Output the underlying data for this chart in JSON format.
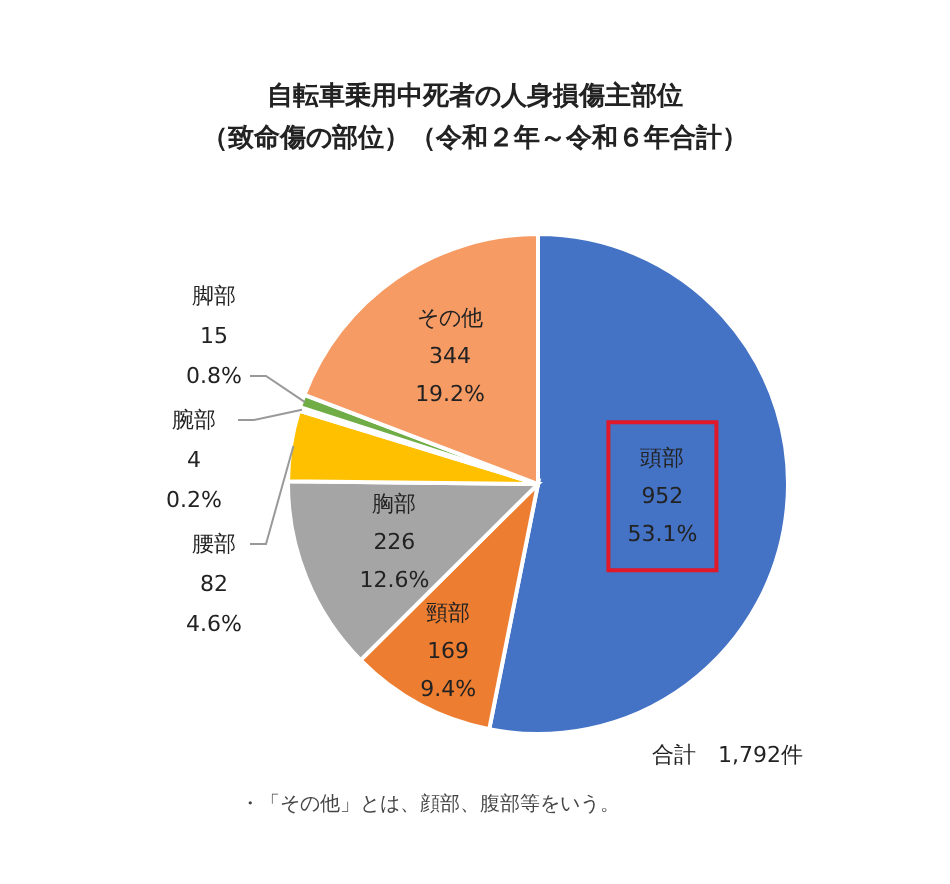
{
  "chart_data": {
    "type": "pie",
    "title": "自転車乗用中死者の人身損傷主部位",
    "subtitle": "（致命傷の部位）（令和２年～令和６年合計）",
    "categories": [
      "頭部",
      "頸部",
      "胸部",
      "腰部",
      "腕部",
      "脚部",
      "その他"
    ],
    "values": [
      952,
      169,
      226,
      82,
      4,
      15,
      344
    ],
    "colors": [
      "#4472c4",
      "#ed7d31",
      "#a5a5a5",
      "#ffc000",
      "#9dc3e6",
      "#70ad47",
      "#f79b65"
    ],
    "value_labels": [
      "952\n53.1%",
      "169\n9.4%",
      "226\n12.6%",
      "82\n4.6%",
      "4\n0.2%",
      "15\n0.8%",
      "344\n19.2%"
    ],
    "annotations": [
      "合計　1,792件",
      "・「その他」とは、顔部、腹部等をいう。"
    ]
  }
}
